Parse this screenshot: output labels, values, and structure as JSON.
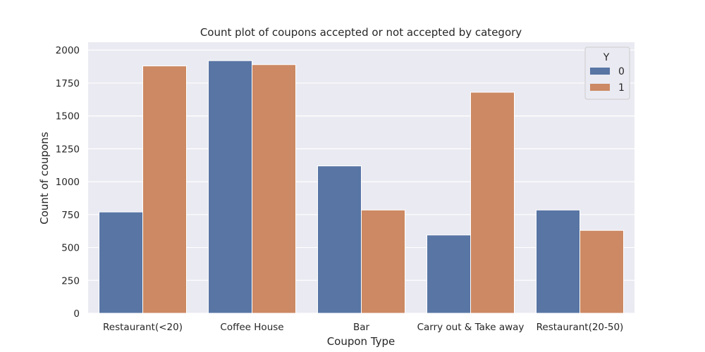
{
  "chart_data": {
    "type": "bar",
    "title": "Count plot of coupons accepted or not accepted by category",
    "xlabel": "Coupon Type",
    "ylabel": "Count of coupons",
    "categories": [
      "Restaurant(<20)",
      "Coffee House",
      "Bar",
      "Carry out & Take away",
      "Restaurant(20-50)"
    ],
    "series": [
      {
        "name": "0",
        "color": "#5875a4",
        "values": [
          770,
          1920,
          1120,
          595,
          785
        ]
      },
      {
        "name": "1",
        "color": "#cc8963",
        "values": [
          1880,
          1890,
          785,
          1680,
          630
        ]
      }
    ],
    "ylim": [
      0,
      2060
    ],
    "yticks": [
      0,
      250,
      500,
      750,
      1000,
      1250,
      1500,
      1750,
      2000
    ],
    "grid": true,
    "legend": {
      "title": "Y",
      "placement": "top-right"
    },
    "background_color": "#eaeaf2"
  }
}
